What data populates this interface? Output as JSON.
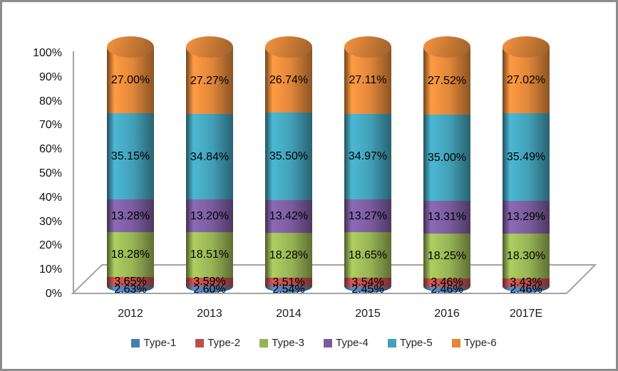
{
  "chart_data": {
    "type": "bar",
    "subtype": "stacked-100-cylinder-3d",
    "title": "",
    "xlabel": "",
    "ylabel": "",
    "ylim": [
      0,
      100
    ],
    "grid": false,
    "legend_position": "bottom",
    "categories": [
      "2012",
      "2013",
      "2014",
      "2015",
      "2016",
      "2017E"
    ],
    "y_ticks": [
      "0%",
      "10%",
      "20%",
      "30%",
      "40%",
      "50%",
      "60%",
      "70%",
      "80%",
      "90%",
      "100%"
    ],
    "series": [
      {
        "name": "Type-1",
        "color": "#4A7CB4",
        "values": [
          2.63,
          2.6,
          2.54,
          2.45,
          2.46,
          2.46
        ]
      },
      {
        "name": "Type-2",
        "color": "#BC4F4B",
        "values": [
          3.65,
          3.59,
          3.51,
          3.54,
          3.46,
          3.43
        ]
      },
      {
        "name": "Type-3",
        "color": "#97B454",
        "values": [
          18.28,
          18.51,
          18.28,
          18.65,
          18.25,
          18.3
        ]
      },
      {
        "name": "Type-4",
        "color": "#7A5C9E",
        "values": [
          13.28,
          13.2,
          13.42,
          13.27,
          13.31,
          13.29
        ]
      },
      {
        "name": "Type-5",
        "color": "#42A0B8",
        "values": [
          35.15,
          34.84,
          35.5,
          34.97,
          35.0,
          35.49
        ]
      },
      {
        "name": "Type-6",
        "color": "#E0873A",
        "values": [
          27.0,
          27.27,
          26.74,
          27.11,
          27.52,
          27.02
        ]
      }
    ],
    "data_label_format": "0.00%",
    "axis_line_color": "#a3a3a3",
    "frame_border_color": "#8c8c8c",
    "plot_background": "#ffffff"
  }
}
